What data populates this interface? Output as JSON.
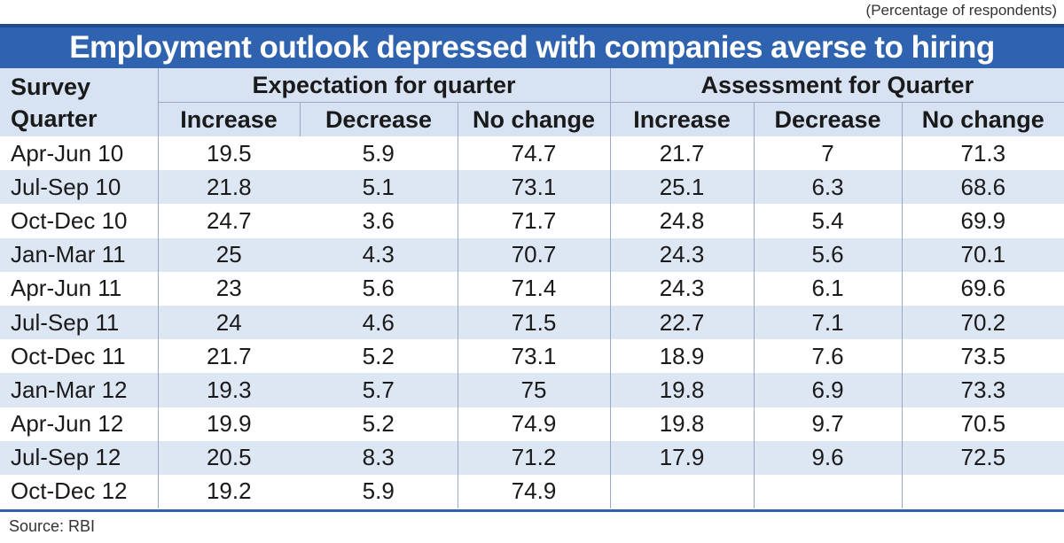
{
  "unit_note": "(Percentage of respondents)",
  "title": "Employment outlook depressed with companies averse to hiring",
  "source": "Source: RBI",
  "colors": {
    "title_bg": "#2f63b0",
    "stripe": "#dde6f3",
    "header_bg": "#d7e2f2"
  },
  "chart_data": {
    "type": "table",
    "title": "Employment outlook depressed with companies averse to hiring",
    "row_header": [
      "Survey",
      "Quarter"
    ],
    "groups": [
      "Expectation for quarter",
      "Assessment for Quarter"
    ],
    "columns": [
      "Increase",
      "Decrease",
      "No change",
      "Increase",
      "Decrease",
      "No change"
    ],
    "rows": [
      {
        "quarter": "Apr-Jun 10",
        "values": [
          "19.5",
          "5.9",
          "74.7",
          "21.7",
          "7",
          "71.3"
        ]
      },
      {
        "quarter": "Jul-Sep 10",
        "values": [
          "21.8",
          "5.1",
          "73.1",
          "25.1",
          "6.3",
          "68.6"
        ]
      },
      {
        "quarter": "Oct-Dec 10",
        "values": [
          "24.7",
          "3.6",
          "71.7",
          "24.8",
          "5.4",
          "69.9"
        ]
      },
      {
        "quarter": "Jan-Mar 11",
        "values": [
          "25",
          "4.3",
          "70.7",
          "24.3",
          "5.6",
          "70.1"
        ]
      },
      {
        "quarter": "Apr-Jun 11",
        "values": [
          "23",
          "5.6",
          "71.4",
          "24.3",
          "6.1",
          "69.6"
        ]
      },
      {
        "quarter": "Jul-Sep 11",
        "values": [
          "24",
          "4.6",
          "71.5",
          "22.7",
          "7.1",
          "70.2"
        ]
      },
      {
        "quarter": "Oct-Dec 11",
        "values": [
          "21.7",
          "5.2",
          "73.1",
          "18.9",
          "7.6",
          "73.5"
        ]
      },
      {
        "quarter": "Jan-Mar 12",
        "values": [
          "19.3",
          "5.7",
          "75",
          "19.8",
          "6.9",
          "73.3"
        ]
      },
      {
        "quarter": "Apr-Jun 12",
        "values": [
          "19.9",
          "5.2",
          "74.9",
          "19.8",
          "9.7",
          "70.5"
        ]
      },
      {
        "quarter": "Jul-Sep 12",
        "values": [
          "20.5",
          "8.3",
          "71.2",
          "17.9",
          "9.6",
          "72.5"
        ]
      },
      {
        "quarter": "Oct-Dec 12",
        "values": [
          "19.2",
          "5.9",
          "74.9",
          "",
          "",
          ""
        ]
      }
    ]
  }
}
